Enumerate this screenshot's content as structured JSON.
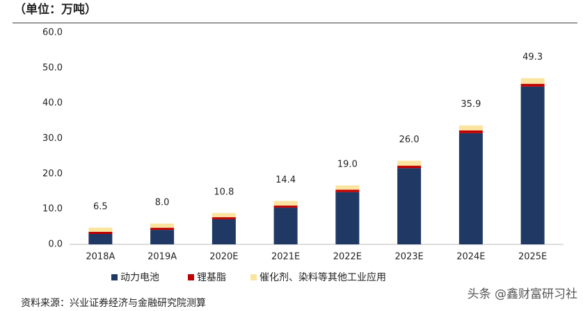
{
  "chart_data": {
    "type": "stacked-bar",
    "title": "（单位：万吨）",
    "categories": [
      "2018A",
      "2019A",
      "2020E",
      "2021E",
      "2022E",
      "2023E",
      "2024E",
      "2025E"
    ],
    "series": [
      {
        "name": "动力电池",
        "color": "#1f3864",
        "values": [
          2.95,
          4.1,
          7.1,
          10.4,
          14.8,
          21.6,
          31.5,
          44.7
        ]
      },
      {
        "name": "锂基脂",
        "color": "#c00000",
        "values": [
          0.6,
          0.6,
          0.6,
          0.6,
          0.7,
          0.7,
          0.8,
          0.8
        ]
      },
      {
        "name": "催化剂、染料等其他工业应用",
        "color": "#fbe4a0",
        "values": [
          1.2,
          1.2,
          1.2,
          1.3,
          1.2,
          1.4,
          1.4,
          1.6
        ]
      }
    ],
    "totals": {
      "values": [
        6.5,
        8,
        10.8,
        14.4,
        19,
        26,
        35.9,
        49.3
      ],
      "value_labels": [
        "6.5",
        "8.0",
        "10.8",
        "14.4",
        "19.0",
        "26.0",
        "35.9",
        "49.3"
      ]
    },
    "ylim": [
      0,
      60
    ],
    "yticks": [
      {
        "value": 0,
        "label": "0.0"
      },
      {
        "value": 10,
        "label": "10.0"
      },
      {
        "value": 20,
        "label": "20.0"
      },
      {
        "value": 30,
        "label": "30.0"
      },
      {
        "value": 40,
        "label": "40.0"
      },
      {
        "value": 50,
        "label": "50.0"
      },
      {
        "value": 60,
        "label": "60.0"
      }
    ],
    "source": "资料来源：兴业证券经济与金融研究院测算",
    "watermark": "头条 @鑫财富研习社"
  }
}
